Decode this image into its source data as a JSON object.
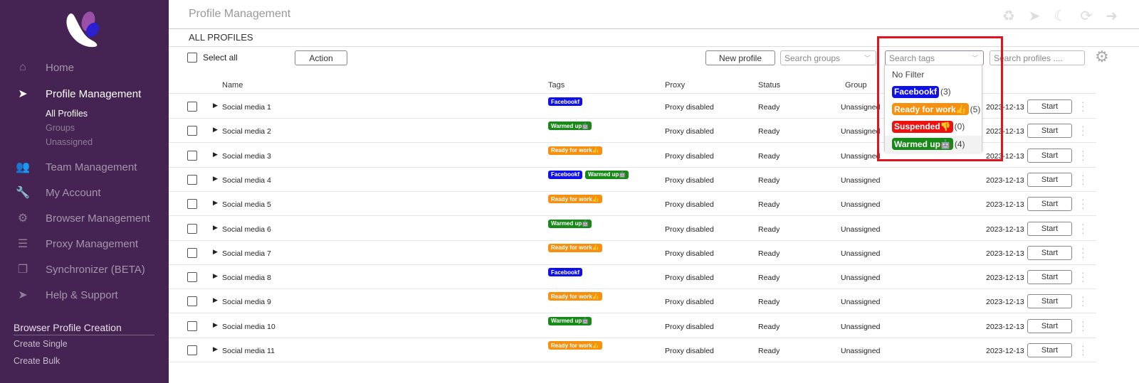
{
  "sidebar": {
    "items": [
      {
        "label": "Home",
        "icon": "home-icon"
      },
      {
        "label": "Profile Management",
        "icon": "cursor-icon"
      },
      {
        "label": "Team Management",
        "icon": "users-icon"
      },
      {
        "label": "My Account",
        "icon": "wrench-icon"
      },
      {
        "label": "Browser Management",
        "icon": "gear-icon"
      },
      {
        "label": "Proxy Management",
        "icon": "server-icon"
      },
      {
        "label": "Synchronizer (BETA)",
        "icon": "copy-icon"
      },
      {
        "label": "Help & Support",
        "icon": "send-icon"
      }
    ],
    "sub": [
      "All Profiles",
      "Groups",
      "Unassigned"
    ],
    "section": "Browser Profile Creation",
    "section_items": [
      "Create Single",
      "Create Bulk"
    ]
  },
  "header": {
    "title": "Profile Management",
    "icons": [
      "recycle-icon",
      "telegram-icon",
      "moon-icon",
      "refresh-icon",
      "logout-icon"
    ]
  },
  "page": {
    "subtitle": "ALL PROFILES",
    "select_all": "Select all",
    "action": "Action",
    "new_profile": "New profile",
    "search_groups": "Search groups",
    "search_tags": "Search tags",
    "search_profiles": "Search profiles ...."
  },
  "columns": [
    "Name",
    "Tags",
    "Proxy",
    "Status",
    "Group"
  ],
  "tags": {
    "Facebook": {
      "color": "#1010e8",
      "icon": "f"
    },
    "Ready for work": {
      "color": "#f7900f",
      "icon": "👍"
    },
    "Suspended": {
      "color": "#ee1111",
      "icon": "👎"
    },
    "Warmed up": {
      "color": "#168a16",
      "icon": "🤖"
    }
  },
  "dropdown": {
    "no_filter": "No Filter",
    "options": [
      {
        "tag": "Facebook",
        "count": "(3)"
      },
      {
        "tag": "Ready for work",
        "count": "(5)"
      },
      {
        "tag": "Suspended",
        "count": "(0)"
      },
      {
        "tag": "Warmed up",
        "count": "(4)"
      }
    ]
  },
  "rows": [
    {
      "name": "Social media 1",
      "tags": [
        "Facebook"
      ],
      "proxy": "Proxy disabled",
      "status": "Ready",
      "group": "Unassigned",
      "date": "2023-12-13",
      "action": "Start"
    },
    {
      "name": "Social media 2",
      "tags": [
        "Warmed up"
      ],
      "proxy": "Proxy disabled",
      "status": "Ready",
      "group": "Unassigned",
      "date": "2023-12-13",
      "action": "Start"
    },
    {
      "name": "Social media 3",
      "tags": [
        "Ready for work"
      ],
      "proxy": "Proxy disabled",
      "status": "Ready",
      "group": "Unassigned",
      "date": "2023-12-13",
      "action": "Start"
    },
    {
      "name": "Social media 4",
      "tags": [
        "Facebook",
        "Warmed up"
      ],
      "proxy": "Proxy disabled",
      "status": "Ready",
      "group": "Unassigned",
      "date": "2023-12-13",
      "action": "Start"
    },
    {
      "name": "Social media 5",
      "tags": [
        "Ready for work"
      ],
      "proxy": "Proxy disabled",
      "status": "Ready",
      "group": "Unassigned",
      "date": "2023-12-13",
      "action": "Start"
    },
    {
      "name": "Social media 6",
      "tags": [
        "Warmed up"
      ],
      "proxy": "Proxy disabled",
      "status": "Ready",
      "group": "Unassigned",
      "date": "2023-12-13",
      "action": "Start"
    },
    {
      "name": "Social media 7",
      "tags": [
        "Ready for work"
      ],
      "proxy": "Proxy disabled",
      "status": "Ready",
      "group": "Unassigned",
      "date": "2023-12-13",
      "action": "Start"
    },
    {
      "name": "Social media 8",
      "tags": [
        "Facebook"
      ],
      "proxy": "Proxy disabled",
      "status": "Ready",
      "group": "Unassigned",
      "date": "2023-12-13",
      "action": "Start"
    },
    {
      "name": "Social media 9",
      "tags": [
        "Ready for work"
      ],
      "proxy": "Proxy disabled",
      "status": "Ready",
      "group": "Unassigned",
      "date": "2023-12-13",
      "action": "Start"
    },
    {
      "name": "Social media 10",
      "tags": [
        "Warmed up"
      ],
      "proxy": "Proxy disabled",
      "status": "Ready",
      "group": "Unassigned",
      "date": "2023-12-13",
      "action": "Start"
    },
    {
      "name": "Social media 11",
      "tags": [
        "Ready for work"
      ],
      "proxy": "Proxy disabled",
      "status": "Ready",
      "group": "Unassigned",
      "date": "2023-12-13",
      "action": "Start"
    }
  ]
}
